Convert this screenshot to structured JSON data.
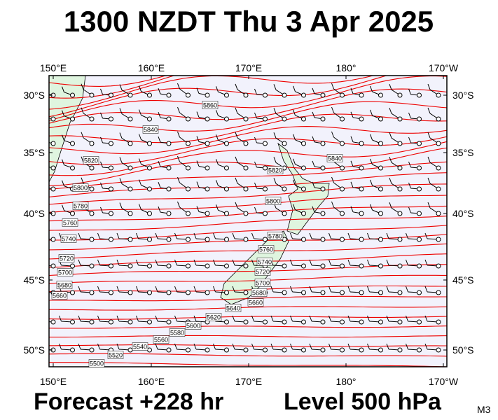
{
  "header": {
    "title": "1300 NZDT Thu 3 Apr 2025"
  },
  "axes": {
    "lon_labels": [
      "150°E",
      "160°E",
      "170°E",
      "180°",
      "170°W"
    ],
    "lat_labels": [
      "30°S",
      "35°S",
      "40°S",
      "45°S",
      "50°S"
    ]
  },
  "contour_labels": [
    "5860",
    "5840",
    "5820",
    "5800",
    "5780",
    "5760",
    "5740",
    "5720",
    "5700",
    "5680",
    "5660",
    "5840",
    "5820",
    "5800",
    "5780",
    "5760",
    "5740",
    "5720",
    "5700",
    "5680",
    "5660",
    "5640",
    "5620",
    "5600",
    "5580",
    "5560",
    "5540",
    "5520",
    "5500"
  ],
  "footer": {
    "forecast": "Forecast +228 hr",
    "level": "Level 500 hPa",
    "code": "M3"
  }
}
